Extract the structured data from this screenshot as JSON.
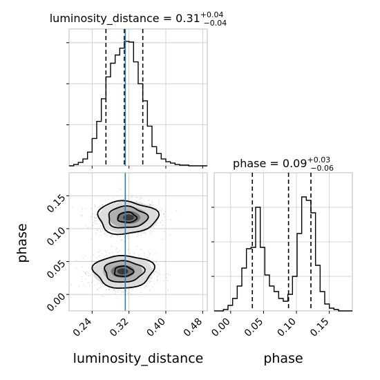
{
  "chart_data": [
    {
      "type": "histogram",
      "panel": "luminosity_distance marginal",
      "title_prefix": "luminosity_distance = 0.31",
      "title_sup": "+0.04",
      "title_sub": "−0.04",
      "xlim": [
        0.19,
        0.49
      ],
      "bins": [
        0.195,
        0.205,
        0.215,
        0.225,
        0.235,
        0.245,
        0.255,
        0.265,
        0.275,
        0.285,
        0.295,
        0.305,
        0.315,
        0.325,
        0.335,
        0.345,
        0.355,
        0.365,
        0.375,
        0.385,
        0.395,
        0.405,
        0.415,
        0.425,
        0.435,
        0.445,
        0.455,
        0.465,
        0.475,
        0.485
      ],
      "counts": [
        0,
        2,
        5,
        10,
        20,
        40,
        65,
        98,
        130,
        150,
        162,
        172,
        182,
        181,
        152,
        120,
        95,
        58,
        28,
        18,
        10,
        6,
        4,
        2,
        1,
        1,
        0,
        0,
        0,
        0
      ],
      "quantiles": [
        0.27,
        0.31,
        0.35
      ],
      "truth": 0.312
    },
    {
      "type": "histogram",
      "panel": "phase marginal",
      "title_prefix": "phase = 0.09",
      "title_sup": "+0.03",
      "title_sub": "−0.06",
      "xlim": [
        -0.025,
        0.185
      ],
      "xticks": [
        "0.00",
        "0.05",
        "0.10",
        "0.15"
      ],
      "xlabel": "phase",
      "edges": [
        -0.025,
        -0.018,
        -0.011,
        -0.004,
        0.003,
        0.01,
        0.017,
        0.024,
        0.031,
        0.038,
        0.045,
        0.052,
        0.059,
        0.066,
        0.073,
        0.08,
        0.087,
        0.094,
        0.101,
        0.108,
        0.115,
        0.122,
        0.129,
        0.136,
        0.143,
        0.15,
        0.157,
        0.164,
        0.171,
        0.178,
        0.185
      ],
      "counts": [
        0,
        0,
        2,
        8,
        18,
        36,
        62,
        90,
        92,
        150,
        92,
        52,
        36,
        28,
        18,
        14,
        24,
        50,
        112,
        165,
        160,
        142,
        66,
        28,
        10,
        4,
        2,
        0,
        0,
        0
      ],
      "quantiles": [
        0.033,
        0.088,
        0.122
      ]
    },
    {
      "type": "scatter",
      "panel": "2D joint",
      "xlabel": "luminosity_distance",
      "ylabel": "phase",
      "xlim": [
        0.19,
        0.49
      ],
      "ylim": [
        -0.025,
        0.185
      ],
      "xticks": [
        "0.24",
        "0.32",
        "0.40",
        "0.48"
      ],
      "yticks": [
        "0.00",
        "0.05",
        "0.10",
        "0.15"
      ],
      "truth_x": 0.312,
      "modes": [
        {
          "x": 0.316,
          "y": 0.117,
          "sx": 0.034,
          "sy": 0.013,
          "weight": 0.5
        },
        {
          "x": 0.308,
          "y": 0.035,
          "sx": 0.034,
          "sy": 0.013,
          "weight": 0.5
        }
      ],
      "contour_levels": 3
    }
  ]
}
